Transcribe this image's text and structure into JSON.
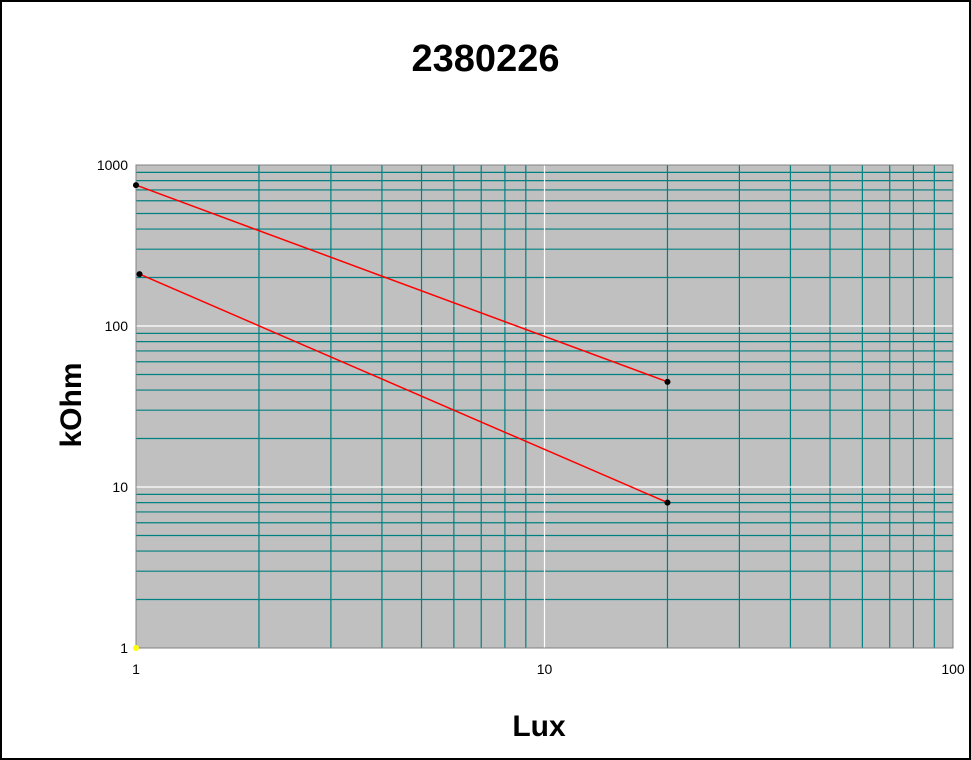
{
  "chart_data": {
    "type": "line",
    "title": "2380226",
    "xlabel": "Lux",
    "ylabel": "kOhm",
    "x_scale": "log",
    "y_scale": "log",
    "xlim": [
      1,
      100
    ],
    "ylim": [
      1,
      1000
    ],
    "x_ticks": [
      "1",
      "10",
      "100"
    ],
    "y_ticks": [
      "1",
      "10",
      "100",
      "1000"
    ],
    "grid": true,
    "legend": "none",
    "series": [
      {
        "x": [
          1,
          20
        ],
        "y": [
          750,
          45
        ]
      },
      {
        "x": [
          1.02,
          20
        ],
        "y": [
          210,
          8
        ]
      }
    ],
    "colors": {
      "plot_background": "#c0c0c0",
      "minor_grid": "#008080",
      "major_grid": "#ffffff",
      "series_line": "#ff0000",
      "markers": "#000000",
      "origin_marker": "#ffff00"
    }
  }
}
